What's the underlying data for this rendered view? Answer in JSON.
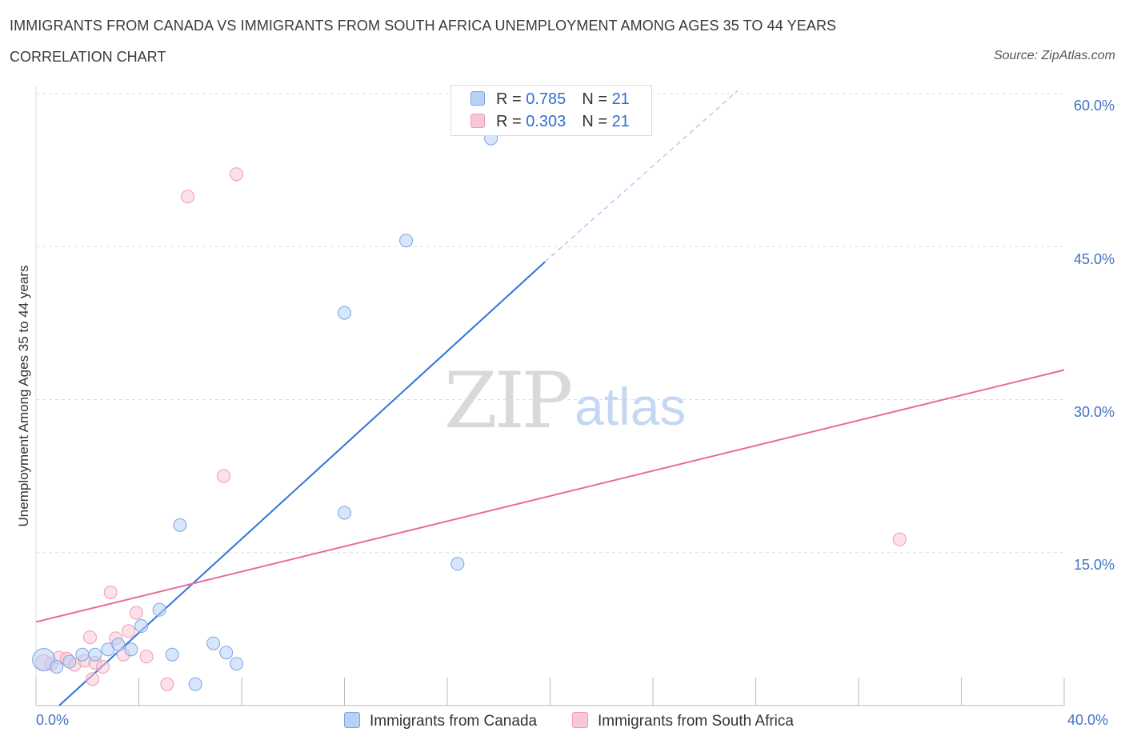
{
  "title": "IMMIGRANTS FROM CANADA VS IMMIGRANTS FROM SOUTH AFRICA UNEMPLOYMENT AMONG AGES 35 TO 44 YEARS",
  "subtitle": "CORRELATION CHART",
  "source": "Source: ZipAtlas.com",
  "watermark": {
    "zip": "ZIP",
    "atlas": "atlas"
  },
  "legend": {
    "canada": {
      "r_label": "R = ",
      "r": "0.785",
      "n_label": "N = ",
      "n": "21"
    },
    "south_africa": {
      "r_label": "R = ",
      "r": "0.303",
      "n_label": "N = ",
      "n": "21"
    }
  },
  "bottom_legend": {
    "canada": "Immigrants from Canada",
    "south_africa": "Immigrants from South Africa"
  },
  "colors": {
    "canada_fill": "#b7d2f5",
    "canada_stroke": "#7aa6e0",
    "canada_line": "#2e74d8",
    "sa_fill": "#f9c8d7",
    "sa_stroke": "#ee9ab4",
    "sa_line": "#e86a94",
    "grid": "#dddddd",
    "axis_text": "#4472c4"
  },
  "chart_data": {
    "type": "scatter",
    "title": "IMMIGRANTS FROM CANADA VS IMMIGRANTS FROM SOUTH AFRICA UNEMPLOYMENT AMONG AGES 35 TO 44 YEARS",
    "xlabel": "",
    "ylabel": "Unemployment Among Ages 35 to 44 years",
    "xlim": [
      0,
      40
    ],
    "ylim": [
      0,
      60
    ],
    "x_tick_labels": [
      "0.0%",
      "40.0%"
    ],
    "y_ticks": [
      15,
      30,
      45,
      60
    ],
    "y_tick_labels": [
      "15.0%",
      "30.0%",
      "45.0%",
      "60.0%"
    ],
    "series": [
      {
        "name": "Immigrants from Canada",
        "r": 0.785,
        "n": 21,
        "points": [
          [
            0.3,
            4.5
          ],
          [
            0.8,
            3.8
          ],
          [
            1.3,
            4.3
          ],
          [
            1.8,
            5.0
          ],
          [
            2.3,
            5.0
          ],
          [
            2.8,
            5.5
          ],
          [
            3.2,
            6.0
          ],
          [
            3.7,
            5.5
          ],
          [
            4.1,
            7.8
          ],
          [
            4.8,
            9.4
          ],
          [
            5.3,
            5.0
          ],
          [
            5.6,
            17.7
          ],
          [
            6.2,
            2.1
          ],
          [
            6.9,
            6.1
          ],
          [
            7.4,
            5.2
          ],
          [
            7.8,
            4.1
          ],
          [
            12.0,
            38.5
          ],
          [
            12.0,
            18.9
          ],
          [
            14.4,
            45.6
          ],
          [
            16.4,
            13.9
          ],
          [
            17.7,
            55.6
          ]
        ],
        "trend": {
          "x": [
            0.9,
            19.8
          ],
          "y": [
            0.0,
            43.5
          ],
          "dashed_x": [
            19.8,
            27.3
          ],
          "dashed_y": [
            43.5,
            60.3
          ]
        }
      },
      {
        "name": "Immigrants from South Africa",
        "r": 0.303,
        "n": 21,
        "points": [
          [
            0.3,
            4.2
          ],
          [
            0.6,
            4.1
          ],
          [
            0.9,
            4.7
          ],
          [
            1.2,
            4.6
          ],
          [
            1.5,
            4.0
          ],
          [
            1.9,
            4.4
          ],
          [
            2.1,
            6.7
          ],
          [
            2.2,
            2.6
          ],
          [
            2.3,
            4.2
          ],
          [
            2.6,
            3.8
          ],
          [
            2.9,
            11.1
          ],
          [
            3.1,
            6.6
          ],
          [
            3.4,
            5.0
          ],
          [
            3.6,
            7.3
          ],
          [
            3.9,
            9.1
          ],
          [
            4.3,
            4.8
          ],
          [
            5.1,
            2.1
          ],
          [
            5.9,
            49.9
          ],
          [
            7.3,
            22.5
          ],
          [
            7.8,
            52.1
          ],
          [
            33.6,
            16.3
          ]
        ],
        "trend": {
          "x": [
            0.0,
            40.0
          ],
          "y": [
            8.2,
            32.9
          ]
        }
      }
    ]
  }
}
